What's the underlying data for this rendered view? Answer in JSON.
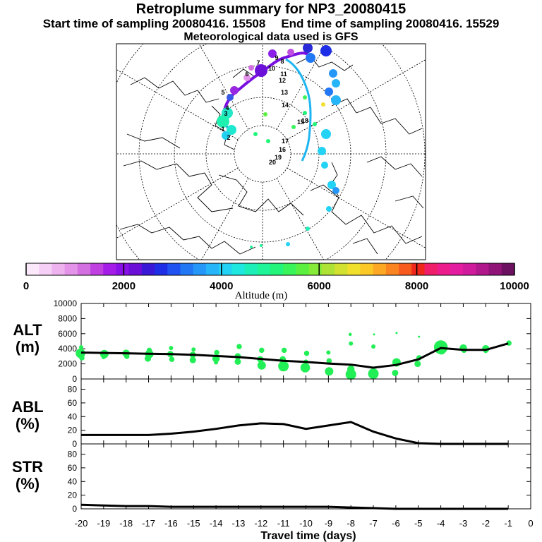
{
  "header": {
    "title": "Retroplume summary for NP3_20080415",
    "start_label": "Start time of sampling 20080416. 15508",
    "end_label": "End time of sampling 20080416. 15529",
    "met_label": "Meteorological data used is GFS"
  },
  "colorbar": {
    "axis_label": "Altitude (m)",
    "tick_labels": [
      "0",
      "2000",
      "4000",
      "6000",
      "8000",
      "10000"
    ],
    "colors": [
      "#fbe9fb",
      "#f5cff5",
      "#eeb3ee",
      "#e494e8",
      "#d36fe0",
      "#bf3fe0",
      "#a51ce8",
      "#8a10e8",
      "#6a0ed8",
      "#3a18d8",
      "#1e2ee6",
      "#1f52f0",
      "#2277f5",
      "#2597f8",
      "#27b5fa",
      "#22d3f5",
      "#1ee8e0",
      "#1cf0b8",
      "#1ef598",
      "#22f57a",
      "#3af55a",
      "#5bf040",
      "#86ea38",
      "#aee234",
      "#d2e030",
      "#f0e02c",
      "#fcc828",
      "#fca824",
      "#fa8420",
      "#f85a1e",
      "#f0281c",
      "#f01e6a",
      "#ec1c8c",
      "#e41ca0",
      "#d01c9c",
      "#b0188c",
      "#901478",
      "#6c1060"
    ]
  },
  "map": {
    "description_labels": [
      "1",
      "2",
      "3",
      "4",
      "5",
      "6",
      "7",
      "8",
      "9",
      "10",
      "11",
      "12",
      "13",
      "14",
      "15",
      "16",
      "17",
      "18",
      "19",
      "20"
    ]
  },
  "chart_data": [
    {
      "type": "line",
      "panel": "ALT",
      "ylabel": "ALT (m)",
      "ylabel_lines": [
        "ALT",
        "(m)"
      ],
      "ylim": [
        0,
        10000
      ],
      "yticks": [
        "0",
        "2000",
        "4000",
        "6000",
        "8000",
        "10000"
      ],
      "x": [
        -20,
        -19,
        -18,
        -17,
        -16,
        -15,
        -14,
        -13,
        -12,
        -11,
        -10,
        -9,
        -8,
        -7,
        -6,
        -5,
        -4,
        -3,
        -2,
        -1
      ],
      "values": [
        3500,
        3450,
        3400,
        3350,
        3300,
        3200,
        3050,
        2900,
        2650,
        2400,
        2250,
        2050,
        1900,
        1500,
        1850,
        2600,
        4100,
        3850,
        3850,
        4700
      ]
    },
    {
      "type": "line",
      "panel": "ABL",
      "ylabel": "ABL (%)",
      "ylabel_lines": [
        "ABL",
        "(%)"
      ],
      "ylim": [
        0,
        90
      ],
      "yticks": [
        "0",
        "20",
        "40",
        "60",
        "80"
      ],
      "x": [
        -20,
        -19,
        -18,
        -17,
        -16,
        -15,
        -14,
        -13,
        -12,
        -11,
        -10,
        -9,
        -8,
        -7,
        -6,
        -5,
        -4,
        -3,
        -2,
        -1
      ],
      "values": [
        13,
        13,
        13,
        13,
        15,
        18,
        22,
        27,
        30,
        29,
        22,
        27,
        32,
        18,
        8,
        1,
        0,
        0,
        0,
        0
      ]
    },
    {
      "type": "line",
      "panel": "STR",
      "ylabel": "STR (%)",
      "ylabel_lines": [
        "STR",
        "(%)"
      ],
      "ylim": [
        0,
        90
      ],
      "yticks": [
        "0",
        "20",
        "40",
        "60",
        "80"
      ],
      "x": [
        -20,
        -19,
        -18,
        -17,
        -16,
        -15,
        -14,
        -13,
        -12,
        -11,
        -10,
        -9,
        -8,
        -7,
        -6,
        -5,
        -4,
        -3,
        -2,
        -1
      ],
      "values": [
        6,
        5,
        4,
        4,
        3,
        3,
        3,
        3,
        3,
        3,
        3,
        3,
        2,
        1,
        0,
        0,
        0,
        0,
        0,
        0
      ]
    }
  ],
  "xaxis": {
    "label": "Travel time (days)",
    "ticks": [
      "-20",
      "-19",
      "-18",
      "-17",
      "-16",
      "-15",
      "-14",
      "-13",
      "-12",
      "-11",
      "-10",
      "-9",
      "-8",
      "-7",
      "-6",
      "-5",
      "-4",
      "-3",
      "-2",
      "-1",
      "0"
    ],
    "xlim": [
      -20,
      0
    ]
  },
  "clusters": {
    "color": "#22ee55",
    "day_values": [
      [
        [
          4200,
          4
        ],
        [
          3400,
          9
        ],
        [
          2800,
          5
        ]
      ],
      [
        [
          3300,
          8
        ],
        [
          2900,
          4
        ]
      ],
      [
        [
          3400,
          7
        ],
        [
          3000,
          5
        ]
      ],
      [
        [
          3800,
          5
        ],
        [
          3300,
          8
        ],
        [
          2700,
          6
        ]
      ],
      [
        [
          4100,
          4
        ],
        [
          3300,
          6
        ],
        [
          2600,
          5
        ]
      ],
      [
        [
          3900,
          4
        ],
        [
          3200,
          6
        ],
        [
          2500,
          6
        ]
      ],
      [
        [
          3500,
          5
        ],
        [
          2700,
          7
        ],
        [
          2200,
          4
        ]
      ],
      [
        [
          4300,
          5
        ],
        [
          3000,
          6
        ],
        [
          2300,
          6
        ]
      ],
      [
        [
          3800,
          5
        ],
        [
          2600,
          6
        ],
        [
          1800,
          8
        ]
      ],
      [
        [
          3800,
          5
        ],
        [
          2600,
          6
        ],
        [
          1700,
          10
        ]
      ],
      [
        [
          3400,
          5
        ],
        [
          2300,
          4
        ],
        [
          1500,
          9
        ]
      ],
      [
        [
          3500,
          4
        ],
        [
          2400,
          5
        ],
        [
          1000,
          8
        ]
      ],
      [
        [
          5900,
          3
        ],
        [
          4700,
          4
        ],
        [
          1300,
          7
        ],
        [
          600,
          10
        ]
      ],
      [
        [
          5900,
          2
        ],
        [
          4300,
          4
        ],
        [
          700,
          10
        ]
      ],
      [
        [
          6100,
          2
        ],
        [
          2200,
          8
        ],
        [
          800,
          6
        ]
      ],
      [
        [
          5600,
          2
        ],
        [
          2800,
          5
        ],
        [
          2000,
          6
        ]
      ],
      [
        [
          4200,
          13
        ],
        [
          3800,
          8
        ]
      ],
      [
        [
          4100,
          7
        ],
        [
          3800,
          5
        ]
      ],
      [
        [
          4000,
          7
        ],
        [
          3700,
          4
        ]
      ],
      [
        [
          4750,
          5
        ]
      ]
    ]
  }
}
